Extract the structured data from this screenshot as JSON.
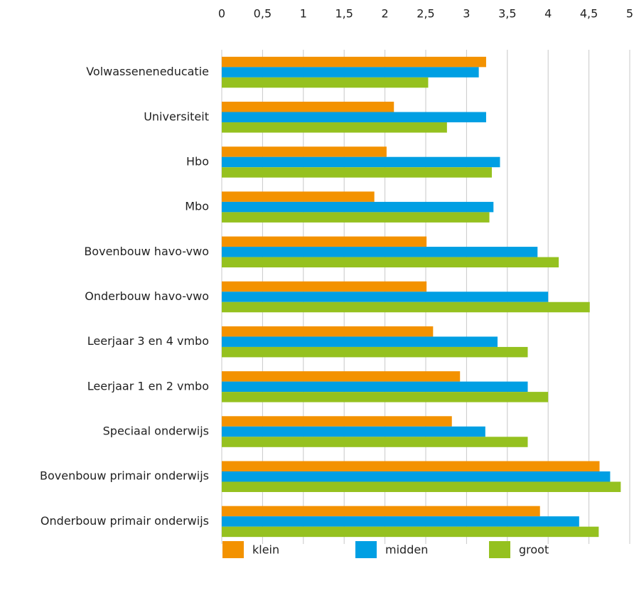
{
  "chart_data": {
    "type": "bar",
    "orientation": "horizontal",
    "categories": [
      "Volwasseneneducatie",
      "Universiteit",
      "Hbo",
      "Mbo",
      "Bovenbouw havo-vwo",
      "Onderbouw havo-vwo",
      "Leerjaar 3 en 4 vmbo",
      "Leerjaar 1 en 2 vmbo",
      "Speciaal onderwijs",
      "Bovenbouw primair onderwijs",
      "Onderbouw primair onderwijs"
    ],
    "series": [
      {
        "name": "klein",
        "color": "#f39200",
        "values": [
          3.24,
          2.11,
          2.02,
          1.87,
          2.51,
          2.51,
          2.59,
          2.92,
          2.82,
          4.63,
          3.9
        ]
      },
      {
        "name": "midden",
        "color": "#009fe3",
        "values": [
          3.15,
          3.24,
          3.41,
          3.33,
          3.87,
          4.0,
          3.38,
          3.75,
          3.23,
          4.76,
          4.38
        ]
      },
      {
        "name": "groot",
        "color": "#95c11f",
        "values": [
          2.53,
          2.76,
          3.31,
          3.28,
          4.13,
          4.51,
          3.75,
          4.0,
          3.75,
          4.89,
          4.62
        ]
      }
    ],
    "xlim": [
      0,
      5
    ],
    "xticks": [
      0,
      {
        "value": 0.5,
        "label": "0,5"
      },
      1,
      {
        "value": 1.5,
        "label": "1,5"
      },
      2,
      {
        "value": 2.5,
        "label": "2,5"
      },
      3,
      {
        "value": 3.5,
        "label": "3,5"
      },
      4,
      {
        "value": 4.5,
        "label": "4,5"
      },
      5
    ],
    "grid": true,
    "legend": "bottom"
  }
}
